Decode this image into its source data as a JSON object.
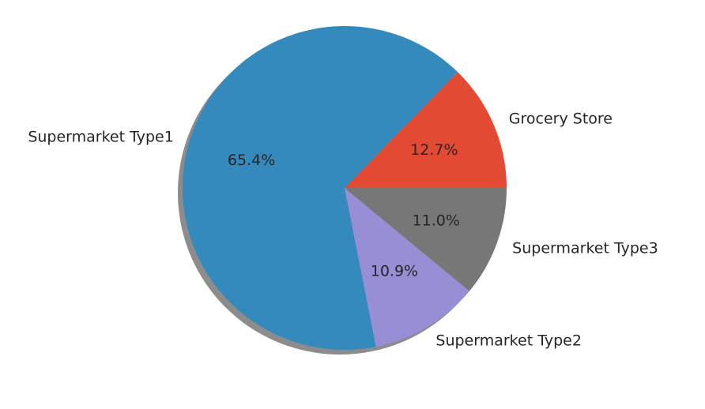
{
  "chart_data": {
    "type": "pie",
    "title": "",
    "start_angle_deg": 0,
    "direction": "counterclockwise",
    "shadow": true,
    "slices": [
      {
        "label": "Grocery Store",
        "value": 12.7,
        "pct_label": "12.7%",
        "color": "#e24a33"
      },
      {
        "label": "Supermarket Type1",
        "value": 65.4,
        "pct_label": "65.4%",
        "color": "#348abd"
      },
      {
        "label": "Supermarket Type2",
        "value": 10.9,
        "pct_label": "10.9%",
        "color": "#988ed5"
      },
      {
        "label": "Supermarket Type3",
        "value": 11.0,
        "pct_label": "11.0%",
        "color": "#777777"
      }
    ],
    "shadow_color": "#8c8c8c",
    "edge_color": "#ffffff"
  }
}
